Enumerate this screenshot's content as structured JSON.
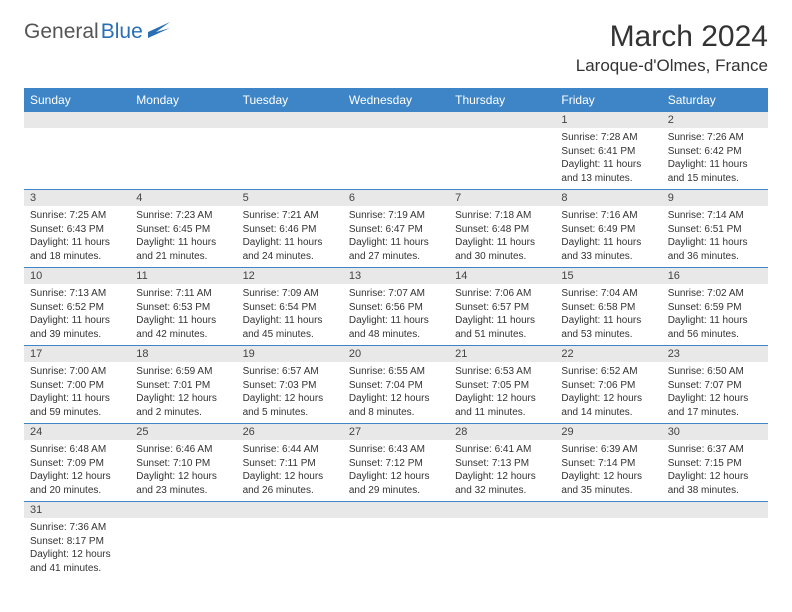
{
  "brand": {
    "part1": "General",
    "part2": "Blue"
  },
  "title": "March 2024",
  "location": "Laroque-d'Olmes, France",
  "colors": {
    "header_bg": "#3d85c6",
    "daynum_bg": "#e8e8e8",
    "border": "#3d85c6"
  },
  "weekdays": [
    "Sunday",
    "Monday",
    "Tuesday",
    "Wednesday",
    "Thursday",
    "Friday",
    "Saturday"
  ],
  "weeks": [
    [
      null,
      null,
      null,
      null,
      null,
      {
        "n": "1",
        "sr": "Sunrise: 7:28 AM",
        "ss": "Sunset: 6:41 PM",
        "d1": "Daylight: 11 hours",
        "d2": "and 13 minutes."
      },
      {
        "n": "2",
        "sr": "Sunrise: 7:26 AM",
        "ss": "Sunset: 6:42 PM",
        "d1": "Daylight: 11 hours",
        "d2": "and 15 minutes."
      }
    ],
    [
      {
        "n": "3",
        "sr": "Sunrise: 7:25 AM",
        "ss": "Sunset: 6:43 PM",
        "d1": "Daylight: 11 hours",
        "d2": "and 18 minutes."
      },
      {
        "n": "4",
        "sr": "Sunrise: 7:23 AM",
        "ss": "Sunset: 6:45 PM",
        "d1": "Daylight: 11 hours",
        "d2": "and 21 minutes."
      },
      {
        "n": "5",
        "sr": "Sunrise: 7:21 AM",
        "ss": "Sunset: 6:46 PM",
        "d1": "Daylight: 11 hours",
        "d2": "and 24 minutes."
      },
      {
        "n": "6",
        "sr": "Sunrise: 7:19 AM",
        "ss": "Sunset: 6:47 PM",
        "d1": "Daylight: 11 hours",
        "d2": "and 27 minutes."
      },
      {
        "n": "7",
        "sr": "Sunrise: 7:18 AM",
        "ss": "Sunset: 6:48 PM",
        "d1": "Daylight: 11 hours",
        "d2": "and 30 minutes."
      },
      {
        "n": "8",
        "sr": "Sunrise: 7:16 AM",
        "ss": "Sunset: 6:49 PM",
        "d1": "Daylight: 11 hours",
        "d2": "and 33 minutes."
      },
      {
        "n": "9",
        "sr": "Sunrise: 7:14 AM",
        "ss": "Sunset: 6:51 PM",
        "d1": "Daylight: 11 hours",
        "d2": "and 36 minutes."
      }
    ],
    [
      {
        "n": "10",
        "sr": "Sunrise: 7:13 AM",
        "ss": "Sunset: 6:52 PM",
        "d1": "Daylight: 11 hours",
        "d2": "and 39 minutes."
      },
      {
        "n": "11",
        "sr": "Sunrise: 7:11 AM",
        "ss": "Sunset: 6:53 PM",
        "d1": "Daylight: 11 hours",
        "d2": "and 42 minutes."
      },
      {
        "n": "12",
        "sr": "Sunrise: 7:09 AM",
        "ss": "Sunset: 6:54 PM",
        "d1": "Daylight: 11 hours",
        "d2": "and 45 minutes."
      },
      {
        "n": "13",
        "sr": "Sunrise: 7:07 AM",
        "ss": "Sunset: 6:56 PM",
        "d1": "Daylight: 11 hours",
        "d2": "and 48 minutes."
      },
      {
        "n": "14",
        "sr": "Sunrise: 7:06 AM",
        "ss": "Sunset: 6:57 PM",
        "d1": "Daylight: 11 hours",
        "d2": "and 51 minutes."
      },
      {
        "n": "15",
        "sr": "Sunrise: 7:04 AM",
        "ss": "Sunset: 6:58 PM",
        "d1": "Daylight: 11 hours",
        "d2": "and 53 minutes."
      },
      {
        "n": "16",
        "sr": "Sunrise: 7:02 AM",
        "ss": "Sunset: 6:59 PM",
        "d1": "Daylight: 11 hours",
        "d2": "and 56 minutes."
      }
    ],
    [
      {
        "n": "17",
        "sr": "Sunrise: 7:00 AM",
        "ss": "Sunset: 7:00 PM",
        "d1": "Daylight: 11 hours",
        "d2": "and 59 minutes."
      },
      {
        "n": "18",
        "sr": "Sunrise: 6:59 AM",
        "ss": "Sunset: 7:01 PM",
        "d1": "Daylight: 12 hours",
        "d2": "and 2 minutes."
      },
      {
        "n": "19",
        "sr": "Sunrise: 6:57 AM",
        "ss": "Sunset: 7:03 PM",
        "d1": "Daylight: 12 hours",
        "d2": "and 5 minutes."
      },
      {
        "n": "20",
        "sr": "Sunrise: 6:55 AM",
        "ss": "Sunset: 7:04 PM",
        "d1": "Daylight: 12 hours",
        "d2": "and 8 minutes."
      },
      {
        "n": "21",
        "sr": "Sunrise: 6:53 AM",
        "ss": "Sunset: 7:05 PM",
        "d1": "Daylight: 12 hours",
        "d2": "and 11 minutes."
      },
      {
        "n": "22",
        "sr": "Sunrise: 6:52 AM",
        "ss": "Sunset: 7:06 PM",
        "d1": "Daylight: 12 hours",
        "d2": "and 14 minutes."
      },
      {
        "n": "23",
        "sr": "Sunrise: 6:50 AM",
        "ss": "Sunset: 7:07 PM",
        "d1": "Daylight: 12 hours",
        "d2": "and 17 minutes."
      }
    ],
    [
      {
        "n": "24",
        "sr": "Sunrise: 6:48 AM",
        "ss": "Sunset: 7:09 PM",
        "d1": "Daylight: 12 hours",
        "d2": "and 20 minutes."
      },
      {
        "n": "25",
        "sr": "Sunrise: 6:46 AM",
        "ss": "Sunset: 7:10 PM",
        "d1": "Daylight: 12 hours",
        "d2": "and 23 minutes."
      },
      {
        "n": "26",
        "sr": "Sunrise: 6:44 AM",
        "ss": "Sunset: 7:11 PM",
        "d1": "Daylight: 12 hours",
        "d2": "and 26 minutes."
      },
      {
        "n": "27",
        "sr": "Sunrise: 6:43 AM",
        "ss": "Sunset: 7:12 PM",
        "d1": "Daylight: 12 hours",
        "d2": "and 29 minutes."
      },
      {
        "n": "28",
        "sr": "Sunrise: 6:41 AM",
        "ss": "Sunset: 7:13 PM",
        "d1": "Daylight: 12 hours",
        "d2": "and 32 minutes."
      },
      {
        "n": "29",
        "sr": "Sunrise: 6:39 AM",
        "ss": "Sunset: 7:14 PM",
        "d1": "Daylight: 12 hours",
        "d2": "and 35 minutes."
      },
      {
        "n": "30",
        "sr": "Sunrise: 6:37 AM",
        "ss": "Sunset: 7:15 PM",
        "d1": "Daylight: 12 hours",
        "d2": "and 38 minutes."
      }
    ],
    [
      {
        "n": "31",
        "sr": "Sunrise: 7:36 AM",
        "ss": "Sunset: 8:17 PM",
        "d1": "Daylight: 12 hours",
        "d2": "and 41 minutes."
      },
      null,
      null,
      null,
      null,
      null,
      null
    ]
  ]
}
